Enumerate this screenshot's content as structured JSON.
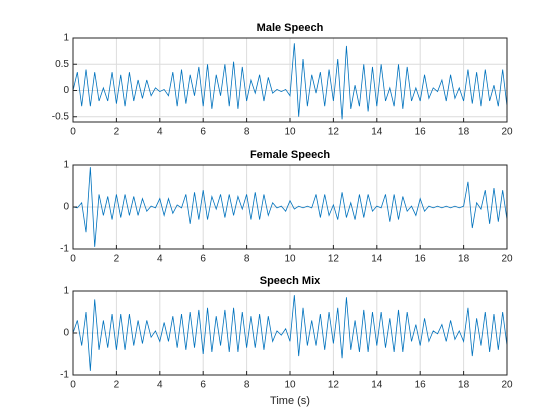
{
  "chart_data": [
    {
      "type": "line",
      "title": "Male Speech",
      "x": [
        0,
        0.2,
        0.4,
        0.6,
        0.8,
        1,
        1.2,
        1.4,
        1.6,
        1.8,
        2,
        2.2,
        2.4,
        2.6,
        2.8,
        3,
        3.2,
        3.4,
        3.6,
        3.8,
        4,
        4.2,
        4.4,
        4.6,
        4.8,
        5,
        5.2,
        5.4,
        5.6,
        5.8,
        6,
        6.2,
        6.4,
        6.6,
        6.8,
        7,
        7.2,
        7.4,
        7.6,
        7.8,
        8,
        8.2,
        8.4,
        8.6,
        8.8,
        9,
        9.2,
        9.4,
        9.6,
        9.8,
        10,
        10.2,
        10.4,
        10.6,
        10.8,
        11,
        11.2,
        11.4,
        11.6,
        11.8,
        12,
        12.2,
        12.4,
        12.6,
        12.8,
        13,
        13.2,
        13.4,
        13.6,
        13.8,
        14,
        14.2,
        14.4,
        14.6,
        14.8,
        15,
        15.2,
        15.4,
        15.6,
        15.8,
        16,
        16.2,
        16.4,
        16.6,
        16.8,
        17,
        17.2,
        17.4,
        17.6,
        17.8,
        18,
        18.2,
        18.4,
        18.6,
        18.8,
        19,
        19.2,
        19.4,
        19.6,
        19.8,
        20
      ],
      "series": [
        {
          "color": "#0072bd",
          "values": [
            0,
            0.35,
            -0.3,
            0.4,
            -0.3,
            0.35,
            -0.2,
            0.05,
            -0.2,
            0.35,
            -0.25,
            0.3,
            -0.3,
            0.35,
            -0.2,
            0.2,
            -0.15,
            0.2,
            -0.1,
            0.05,
            -0.02,
            0.02,
            -0.1,
            0.35,
            -0.3,
            0.4,
            -0.25,
            0.3,
            -0.1,
            0.45,
            -0.3,
            0.5,
            -0.35,
            0.3,
            -0.1,
            0.5,
            -0.3,
            0.55,
            -0.35,
            0.45,
            -0.2,
            0.2,
            -0.05,
            0.3,
            -0.2,
            0.25,
            -0.05,
            0.02,
            -0.02,
            0.02,
            -0.1,
            0.9,
            -0.5,
            0.6,
            -0.3,
            0.3,
            -0.05,
            0.35,
            -0.3,
            0.4,
            -0.2,
            0.6,
            -0.55,
            0.85,
            -0.35,
            0.1,
            -0.3,
            0.5,
            -0.4,
            0.45,
            -0.3,
            0.5,
            -0.2,
            0.05,
            -0.3,
            0.5,
            -0.35,
            0.45,
            -0.2,
            0.05,
            -0.2,
            0.3,
            -0.15,
            0.05,
            -0.02,
            0.2,
            -0.2,
            0.3,
            -0.15,
            0.05,
            -0.2,
            0.4,
            -0.25,
            0.35,
            -0.3,
            0.4,
            -0.2,
            0.1,
            -0.3,
            0.4,
            -0.3
          ]
        }
      ],
      "xlim": [
        0,
        20
      ],
      "ylim": [
        -0.6,
        1
      ],
      "xticks": [
        0,
        2,
        4,
        6,
        8,
        10,
        12,
        14,
        16,
        18,
        20
      ],
      "yticks": [
        -0.5,
        0,
        0.5,
        1
      ],
      "grid": true
    },
    {
      "type": "line",
      "title": "Female Speech",
      "x": [
        0,
        0.2,
        0.4,
        0.6,
        0.8,
        1,
        1.2,
        1.4,
        1.6,
        1.8,
        2,
        2.2,
        2.4,
        2.6,
        2.8,
        3,
        3.2,
        3.4,
        3.6,
        3.8,
        4,
        4.2,
        4.4,
        4.6,
        4.8,
        5,
        5.2,
        5.4,
        5.6,
        5.8,
        6,
        6.2,
        6.4,
        6.6,
        6.8,
        7,
        7.2,
        7.4,
        7.6,
        7.8,
        8,
        8.2,
        8.4,
        8.6,
        8.8,
        9,
        9.2,
        9.4,
        9.6,
        9.8,
        10,
        10.2,
        10.4,
        10.6,
        10.8,
        11,
        11.2,
        11.4,
        11.6,
        11.8,
        12,
        12.2,
        12.4,
        12.6,
        12.8,
        13,
        13.2,
        13.4,
        13.6,
        13.8,
        14,
        14.2,
        14.4,
        14.6,
        14.8,
        15,
        15.2,
        15.4,
        15.6,
        15.8,
        16,
        16.2,
        16.4,
        16.6,
        16.8,
        17,
        17.2,
        17.4,
        17.6,
        17.8,
        18,
        18.2,
        18.4,
        18.6,
        18.8,
        19,
        19.2,
        19.4,
        19.6,
        19.8,
        20
      ],
      "series": [
        {
          "color": "#0072bd",
          "values": [
            0,
            -0.02,
            0.1,
            -0.6,
            0.95,
            -0.95,
            0.3,
            -0.2,
            0.25,
            -0.3,
            0.3,
            -0.25,
            0.3,
            -0.2,
            0.25,
            -0.2,
            0.2,
            -0.1,
            0.02,
            -0.02,
            0.2,
            -0.2,
            0.2,
            -0.15,
            0.05,
            -0.02,
            0.3,
            -0.4,
            0.35,
            -0.3,
            0.4,
            -0.3,
            0.25,
            -0.05,
            0.3,
            -0.25,
            0.3,
            -0.2,
            0.25,
            -0.05,
            0.3,
            -0.3,
            0.35,
            -0.3,
            0.3,
            -0.2,
            0.1,
            -0.02,
            0.02,
            -0.1,
            0.15,
            -0.05,
            0.02,
            -0.02,
            0.02,
            -0.02,
            0.3,
            -0.25,
            0.3,
            -0.2,
            0.05,
            -0.3,
            0.35,
            -0.25,
            0.1,
            -0.3,
            0.3,
            -0.25,
            0.3,
            -0.1,
            0.02,
            -0.02,
            0.3,
            -0.35,
            0.3,
            -0.3,
            0.25,
            -0.1,
            0.02,
            -0.2,
            0.2,
            -0.1,
            0.02,
            -0.02,
            0.02,
            -0.02,
            0.02,
            -0.02,
            0.02,
            -0.02,
            0.02,
            0.6,
            -0.5,
            0.1,
            -0.05,
            0.4,
            -0.4,
            0.45,
            -0.35,
            0.4,
            -0.3
          ]
        }
      ],
      "xlim": [
        0,
        20
      ],
      "ylim": [
        -1,
        1
      ],
      "xticks": [
        0,
        2,
        4,
        6,
        8,
        10,
        12,
        14,
        16,
        18,
        20
      ],
      "yticks": [
        -1,
        0,
        1
      ],
      "grid": true
    },
    {
      "type": "line",
      "title": "Speech Mix",
      "xlabel": "Time (s)",
      "x": [
        0,
        0.2,
        0.4,
        0.6,
        0.8,
        1,
        1.2,
        1.4,
        1.6,
        1.8,
        2,
        2.2,
        2.4,
        2.6,
        2.8,
        3,
        3.2,
        3.4,
        3.6,
        3.8,
        4,
        4.2,
        4.4,
        4.6,
        4.8,
        5,
        5.2,
        5.4,
        5.6,
        5.8,
        6,
        6.2,
        6.4,
        6.6,
        6.8,
        7,
        7.2,
        7.4,
        7.6,
        7.8,
        8,
        8.2,
        8.4,
        8.6,
        8.8,
        9,
        9.2,
        9.4,
        9.6,
        9.8,
        10,
        10.2,
        10.4,
        10.6,
        10.8,
        11,
        11.2,
        11.4,
        11.6,
        11.8,
        12,
        12.2,
        12.4,
        12.6,
        12.8,
        13,
        13.2,
        13.4,
        13.6,
        13.8,
        14,
        14.2,
        14.4,
        14.6,
        14.8,
        15,
        15.2,
        15.4,
        15.6,
        15.8,
        16,
        16.2,
        16.4,
        16.6,
        16.8,
        17,
        17.2,
        17.4,
        17.6,
        17.8,
        18,
        18.2,
        18.4,
        18.6,
        18.8,
        19,
        19.2,
        19.4,
        19.6,
        19.8,
        20
      ],
      "series": [
        {
          "color": "#0072bd",
          "values": [
            0,
            0.3,
            -0.3,
            0.5,
            -0.9,
            0.8,
            -0.4,
            0.3,
            -0.35,
            0.45,
            -0.4,
            0.45,
            -0.4,
            0.45,
            -0.3,
            0.3,
            -0.25,
            0.3,
            -0.1,
            0.05,
            -0.2,
            0.25,
            -0.2,
            0.4,
            -0.35,
            0.45,
            -0.4,
            0.5,
            -0.35,
            0.55,
            -0.5,
            0.6,
            -0.45,
            0.4,
            -0.3,
            0.55,
            -0.45,
            0.6,
            -0.45,
            0.5,
            -0.35,
            0.4,
            -0.35,
            0.45,
            -0.4,
            0.4,
            -0.2,
            0.05,
            -0.05,
            0.1,
            -0.2,
            0.9,
            -0.55,
            0.6,
            -0.3,
            0.3,
            -0.3,
            0.45,
            -0.4,
            0.5,
            -0.25,
            0.6,
            -0.6,
            0.85,
            -0.4,
            0.3,
            -0.45,
            0.55,
            -0.45,
            0.5,
            -0.3,
            0.5,
            -0.35,
            0.35,
            -0.45,
            0.55,
            -0.45,
            0.5,
            -0.2,
            0.2,
            -0.3,
            0.35,
            -0.2,
            0.05,
            -0.02,
            0.2,
            -0.2,
            0.3,
            -0.15,
            0.05,
            -0.2,
            0.6,
            -0.55,
            0.35,
            -0.3,
            0.5,
            -0.45,
            0.45,
            -0.4,
            0.5,
            -0.3
          ]
        }
      ],
      "xlim": [
        0,
        20
      ],
      "ylim": [
        -1,
        1
      ],
      "xticks": [
        0,
        2,
        4,
        6,
        8,
        10,
        12,
        14,
        16,
        18,
        20
      ],
      "yticks": [
        -1,
        0,
        1
      ],
      "grid": true
    }
  ]
}
